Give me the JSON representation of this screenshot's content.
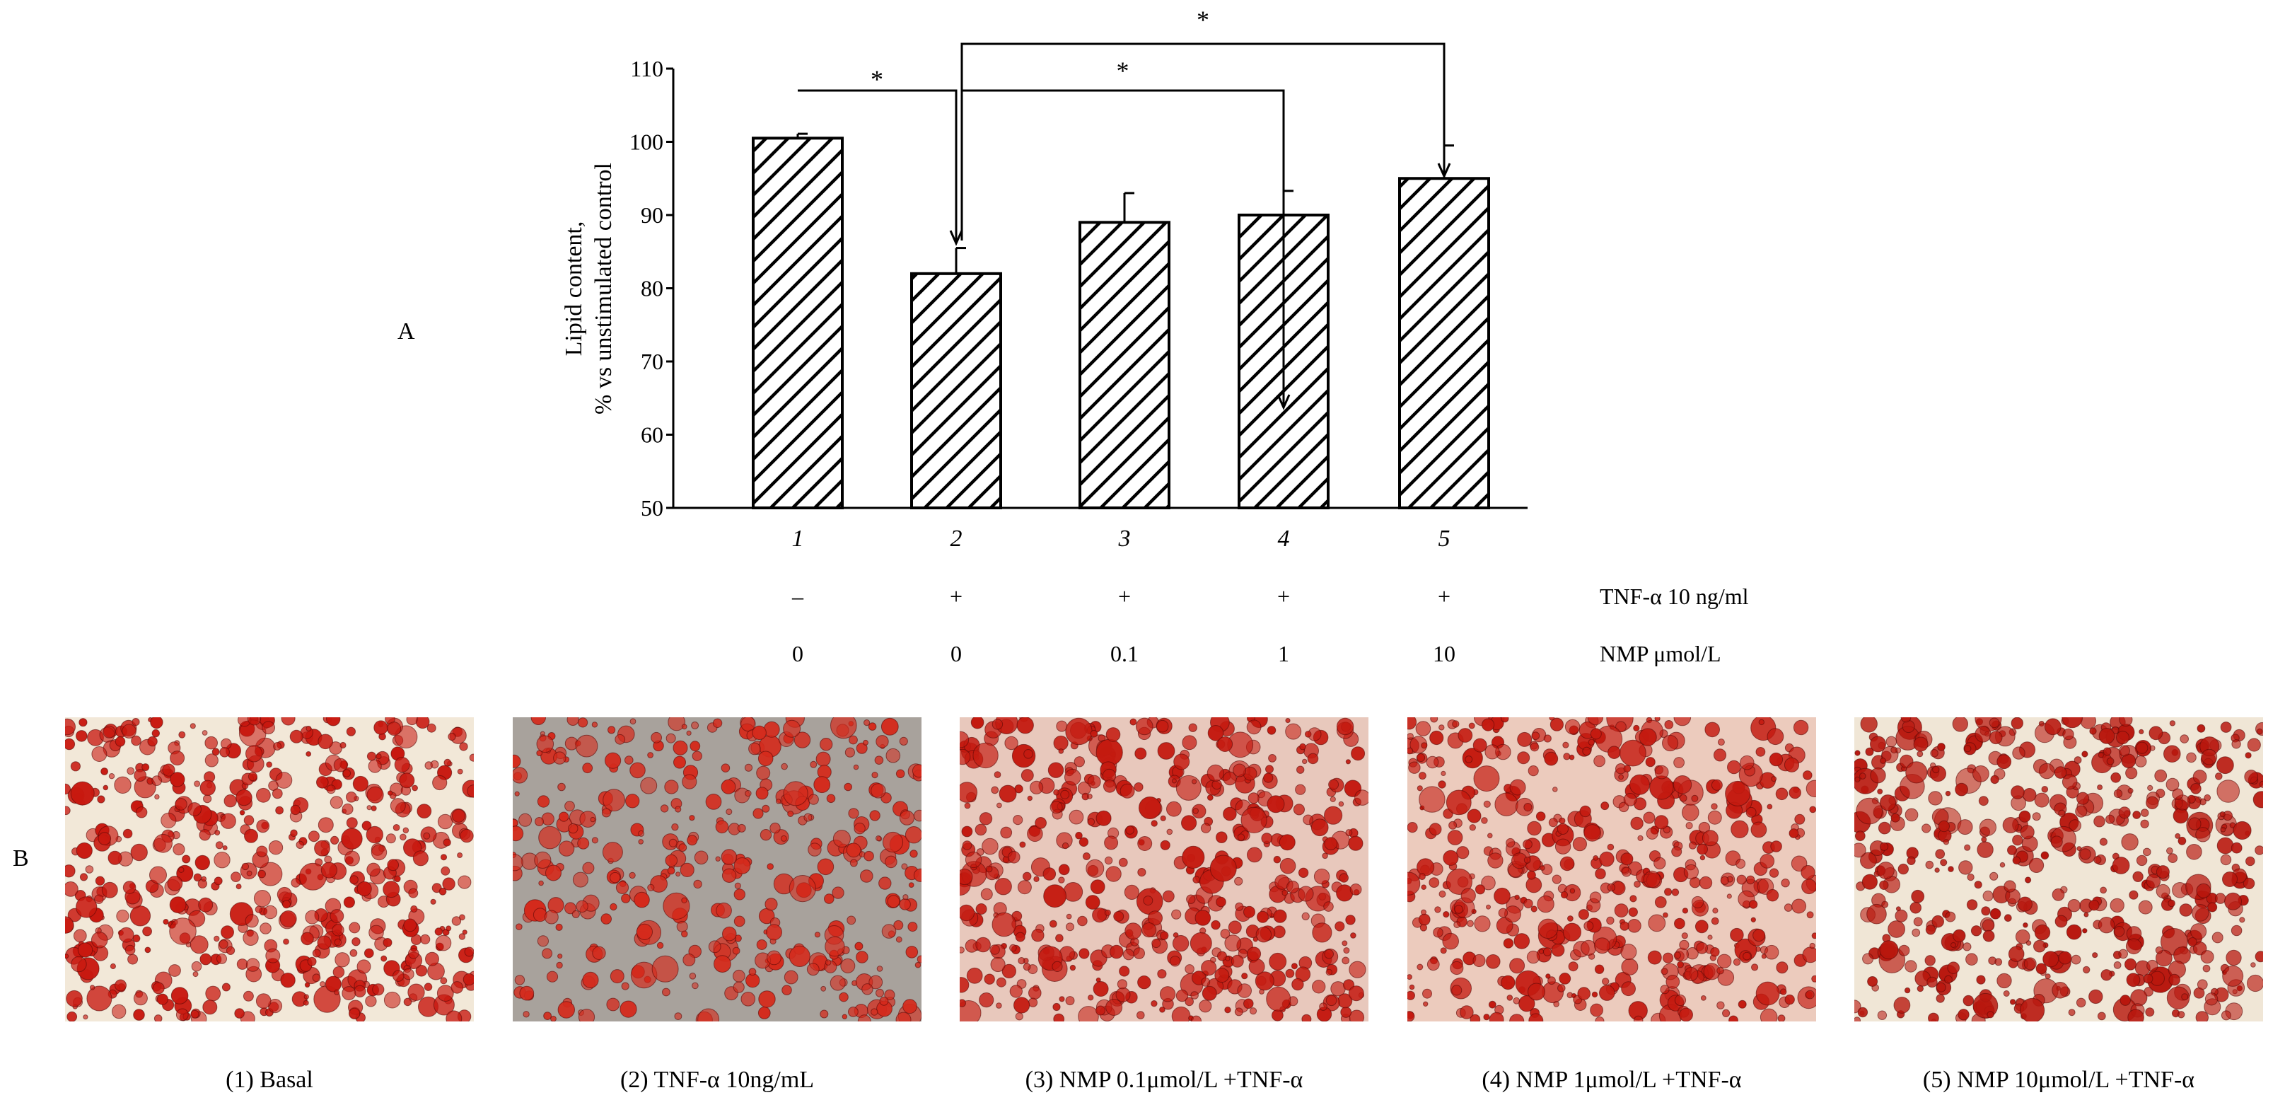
{
  "panels": {
    "a": "A",
    "b": "B"
  },
  "chart_data": {
    "type": "bar",
    "categories": [
      "1",
      "2",
      "3",
      "4",
      "5"
    ],
    "values": [
      100.5,
      82,
      89,
      90,
      95
    ],
    "errors": [
      0.6,
      3.5,
      4,
      3.3,
      4.5
    ],
    "ylabel_line1": "Lipid content,",
    "ylabel_line2": "% vs unstimulated control",
    "ylim": [
      50,
      110
    ],
    "yticks": [
      50,
      60,
      70,
      80,
      90,
      100,
      110
    ],
    "bar_fill": "diagonal-hatch",
    "grid": false,
    "significance": [
      {
        "from": 1,
        "to": 2,
        "label": "*"
      },
      {
        "from": 2,
        "to": 4,
        "label": "*"
      },
      {
        "from": 2,
        "to": 5,
        "label": "*"
      }
    ],
    "treatment_rows": [
      {
        "label": "TNF-α 10 ng/ml",
        "values": [
          "–",
          "+",
          "+",
          "+",
          "+"
        ]
      },
      {
        "label": "NMP μmol/L",
        "values": [
          "0",
          "0",
          "0.1",
          "1",
          "10"
        ]
      }
    ]
  },
  "micrographs": [
    {
      "caption": "(1) Basal",
      "stain_color": "#c8180f",
      "background_color": "#f2e8d8",
      "density": 0.75
    },
    {
      "caption": "(2) TNF-α 10ng/mL",
      "stain_color": "#d42a1c",
      "background_color": "#a8a29c",
      "density": 0.35
    },
    {
      "caption": "(3) NMP 0.1μmol/L  +TNF-α",
      "stain_color": "#c41a10",
      "background_color": "#e8c8bc",
      "density": 0.65
    },
    {
      "caption": "(4) NMP 1μmol/L  +TNF-α",
      "stain_color": "#c41a10",
      "background_color": "#eccbbd",
      "density": 0.68
    },
    {
      "caption": "(5) NMP 10μmol/L  +TNF-α",
      "stain_color": "#b8170e",
      "background_color": "#f0e6d6",
      "density": 0.72
    }
  ]
}
